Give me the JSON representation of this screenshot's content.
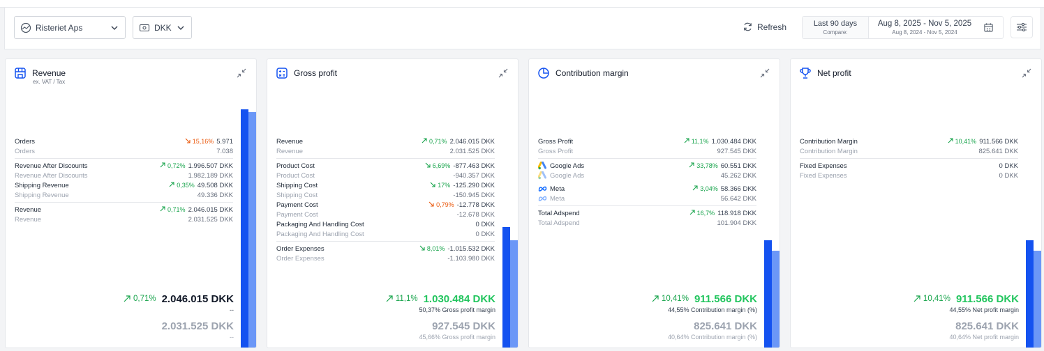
{
  "toolbar": {
    "company": "Risteriet Aps",
    "currency": "DKK",
    "refresh_label": "Refresh",
    "range_label": "Last 90 days",
    "compare_label": "Compare:",
    "date_range": "Aug 8, 2025 - Nov 5, 2025",
    "compare_range": "Aug 8, 2024 - Nov 5, 2024"
  },
  "colors": {
    "accent": "#1452f0",
    "accent_light": "#6b97f7",
    "positive": "#16a34a",
    "negative": "#ea580c"
  },
  "cards": [
    {
      "title": "Revenue",
      "subtitle": "ex. VAT / Tax",
      "icon": "store-icon",
      "bar_level": {
        "current": 0.91,
        "previous": 0.9
      },
      "groups": [
        [
          {
            "label": "Orders",
            "change": "15,16%",
            "dir": "down",
            "value": "5.971",
            "prev_label": "Orders",
            "prev_value": "7.038"
          }
        ],
        [
          {
            "label": "Revenue After Discounts",
            "change": "0,72%",
            "dir": "up",
            "value": "1.996.507 DKK",
            "prev_label": "Revenue After Discounts",
            "prev_value": "1.982.189 DKK"
          },
          {
            "label": "Shipping Revenue",
            "change": "0,35%",
            "dir": "up",
            "value": "49.508 DKK",
            "prev_label": "Shipping Revenue",
            "prev_value": "49.336 DKK"
          }
        ],
        [
          {
            "label": "Revenue",
            "change": "0,71%",
            "dir": "up",
            "value": "2.046.015 DKK",
            "prev_label": "Revenue",
            "prev_value": "2.031.525 DKK"
          }
        ]
      ],
      "total": {
        "change": "0,71%",
        "value": "2.046.015 DKK",
        "note": "--",
        "prev_value": "2.031.525 DKK",
        "prev_note": "--",
        "green": false
      }
    },
    {
      "title": "Gross profit",
      "subtitle": "",
      "icon": "calculator-icon",
      "bar_level": {
        "current": 0.46,
        "previous": 0.41
      },
      "groups": [
        [
          {
            "label": "Revenue",
            "change": "0,71%",
            "dir": "up",
            "value": "2.046.015 DKK",
            "prev_label": "Revenue",
            "prev_value": "2.031.525 DKK"
          }
        ],
        [
          {
            "label": "Product Cost",
            "change": "6,69%",
            "dir": "up",
            "value": "-877.463 DKK",
            "prev_label": "Product Cost",
            "prev_value": "-940.357 DKK"
          },
          {
            "label": "Shipping Cost",
            "change": "17%",
            "dir": "up",
            "value": "-125.290 DKK",
            "prev_label": "Shipping Cost",
            "prev_value": "-150.945 DKK"
          },
          {
            "label": "Payment Cost",
            "change": "0,79%",
            "dir": "down",
            "value": "-12.778 DKK",
            "prev_label": "Payment Cost",
            "prev_value": "-12.678 DKK"
          },
          {
            "label": "Packaging And Handling Cost",
            "change": "",
            "dir": "",
            "value": "0 DKK",
            "prev_label": "Packaging And Handling Cost",
            "prev_value": "0 DKK"
          }
        ],
        [
          {
            "label": "Order Expenses",
            "change": "8,01%",
            "dir": "up",
            "value": "-1.015.532 DKK",
            "prev_label": "Order Expenses",
            "prev_value": "-1.103.980 DKK"
          }
        ]
      ],
      "total": {
        "change": "11,1%",
        "value": "1.030.484 DKK",
        "note": "50,37% Gross profit margin",
        "prev_value": "927.545 DKK",
        "prev_note": "45,66% Gross profit margin",
        "green": true
      }
    },
    {
      "title": "Contribution margin",
      "subtitle": "",
      "icon": "pie-chart-icon",
      "bar_level": {
        "current": 0.41,
        "previous": 0.37
      },
      "groups": [
        [
          {
            "label": "Gross Profit",
            "change": "11,1%",
            "dir": "up",
            "value": "1.030.484 DKK",
            "prev_label": "Gross Profit",
            "prev_value": "927.545 DKK"
          }
        ],
        [
          {
            "label": "Google Ads",
            "change": "33,78%",
            "dir": "up",
            "value": "60.551 DKK",
            "prev_label": "Google Ads",
            "prev_value": "45.262 DKK",
            "ad": "google"
          },
          {
            "label": "Meta",
            "change": "3,04%",
            "dir": "up",
            "value": "58.366 DKK",
            "prev_label": "Meta",
            "prev_value": "56.642 DKK",
            "ad": "meta"
          }
        ],
        [
          {
            "label": "Total Adspend",
            "change": "16,7%",
            "dir": "up",
            "value": "118.918 DKK",
            "prev_label": "Total Adspend",
            "prev_value": "101.904 DKK"
          }
        ]
      ],
      "total": {
        "change": "10,41%",
        "value": "911.566 DKK",
        "note": "44,55% Contribution margin (%)",
        "prev_value": "825.641 DKK",
        "prev_note": "40,64% Contribution margin (%)",
        "green": true
      }
    },
    {
      "title": "Net profit",
      "subtitle": "",
      "icon": "trophy-icon",
      "bar_level": {
        "current": 0.41,
        "previous": 0.37
      },
      "groups": [
        [
          {
            "label": "Contribution Margin",
            "change": "10,41%",
            "dir": "up",
            "value": "911.566 DKK",
            "prev_label": "Contribution Margin",
            "prev_value": "825.641 DKK"
          }
        ],
        [
          {
            "label": "Fixed Expenses",
            "change": "",
            "dir": "",
            "value": "0 DKK",
            "prev_label": "Fixed Expenses",
            "prev_value": "0 DKK"
          }
        ]
      ],
      "total": {
        "change": "10,41%",
        "value": "911.566 DKK",
        "note": "44,55% Net profit margin",
        "prev_value": "825.641 DKK",
        "prev_note": "40,64% Net profit margin",
        "green": true
      }
    }
  ]
}
